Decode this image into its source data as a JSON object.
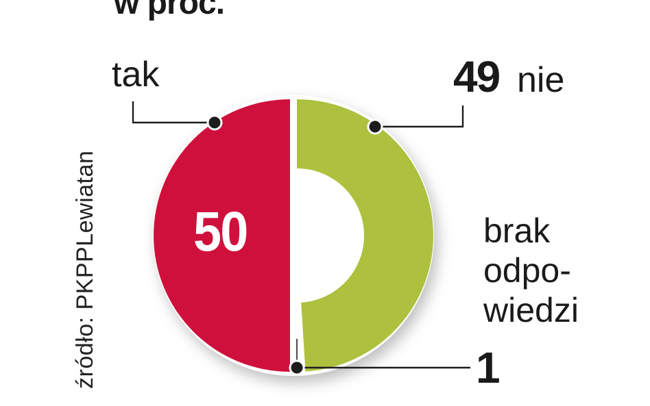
{
  "title": "w proc.",
  "source": "źródło: PKPPLewiatan",
  "chart_data": {
    "type": "pie",
    "title": "w proc.",
    "unit": "percent",
    "legend_position": "callouts",
    "source": "źródło: PKPPLewiatan",
    "slices": [
      {
        "label": "nie",
        "value": 49,
        "color": "#aec13f",
        "render": "ring"
      },
      {
        "label": "brak odpowiedzi",
        "value": 1,
        "color": "#ffffff",
        "render": "gap"
      },
      {
        "label": "tak",
        "value": 50,
        "color": "#d0103c",
        "render": "solid"
      }
    ],
    "callouts": {
      "tak": {
        "label": "tak",
        "value": "50"
      },
      "nie": {
        "label": "nie",
        "value": "49"
      },
      "brak": {
        "label": "brak\nodpo-\nwiedzi",
        "value": "1"
      }
    },
    "colors": {
      "tak": "#d0103c",
      "nie": "#aec13f",
      "marker": "#1c1c1c"
    }
  }
}
